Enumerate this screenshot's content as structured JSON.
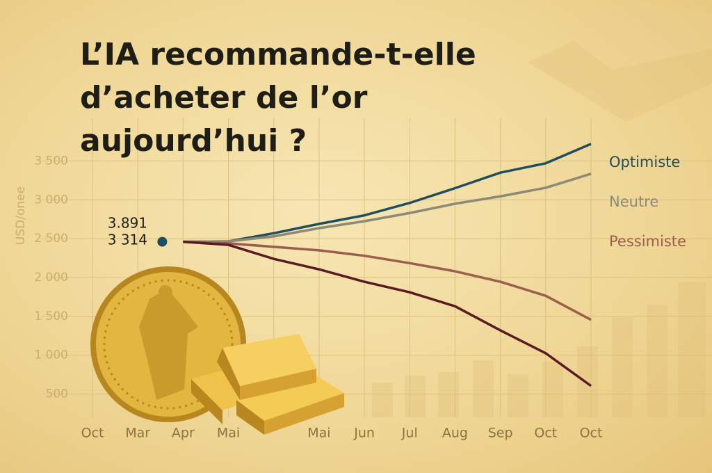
{
  "chart_data": {
    "type": "line",
    "title": "L’IA recommande-t-elle d’acheter de l’or aujourd’hui ?",
    "y_label": "USD/onee",
    "annotations": [
      "3.891",
      "3 314"
    ],
    "categories": [
      "Oct",
      "Mar",
      "Apr",
      "Mai",
      null,
      "Mai",
      "Jun",
      "Jul",
      "Aug",
      "Sep",
      "Oct",
      "Oct"
    ],
    "series": [
      {
        "name": "Optimiste",
        "color": "#1f4e5f",
        "values": [
          null,
          null,
          2460,
          2465,
          2570,
          2690,
          2800,
          2960,
          3150,
          3350,
          3470,
          3720
        ]
      },
      {
        "name": "Neutre",
        "color": "#8c8a76",
        "values": [
          null,
          null,
          2460,
          2465,
          2530,
          2635,
          2725,
          2830,
          2950,
          3045,
          3155,
          3335
        ]
      },
      {
        "name": "Pessimiste",
        "color": "#9b5e4c",
        "values": [
          null,
          null,
          2460,
          2440,
          2395,
          2350,
          2280,
          2185,
          2080,
          1945,
          1765,
          1455
        ]
      },
      {
        "color": "#5a1a22",
        "values": [
          null,
          null,
          2460,
          2420,
          2240,
          2105,
          1945,
          1810,
          1630,
          1320,
          1025,
          605
        ]
      }
    ],
    "ylim": [
      200,
      4050
    ],
    "yticks": [
      {
        "value": 500,
        "label": "500"
      },
      {
        "value": 1000,
        "label": "1 000"
      },
      {
        "value": 1500,
        "label": "1 500"
      },
      {
        "value": 2000,
        "label": "2 000"
      },
      {
        "value": 2500,
        "label": "2 500"
      },
      {
        "value": 3000,
        "label": "3 000"
      },
      {
        "value": 3500,
        "label": "3 500"
      }
    ],
    "grid": true
  }
}
